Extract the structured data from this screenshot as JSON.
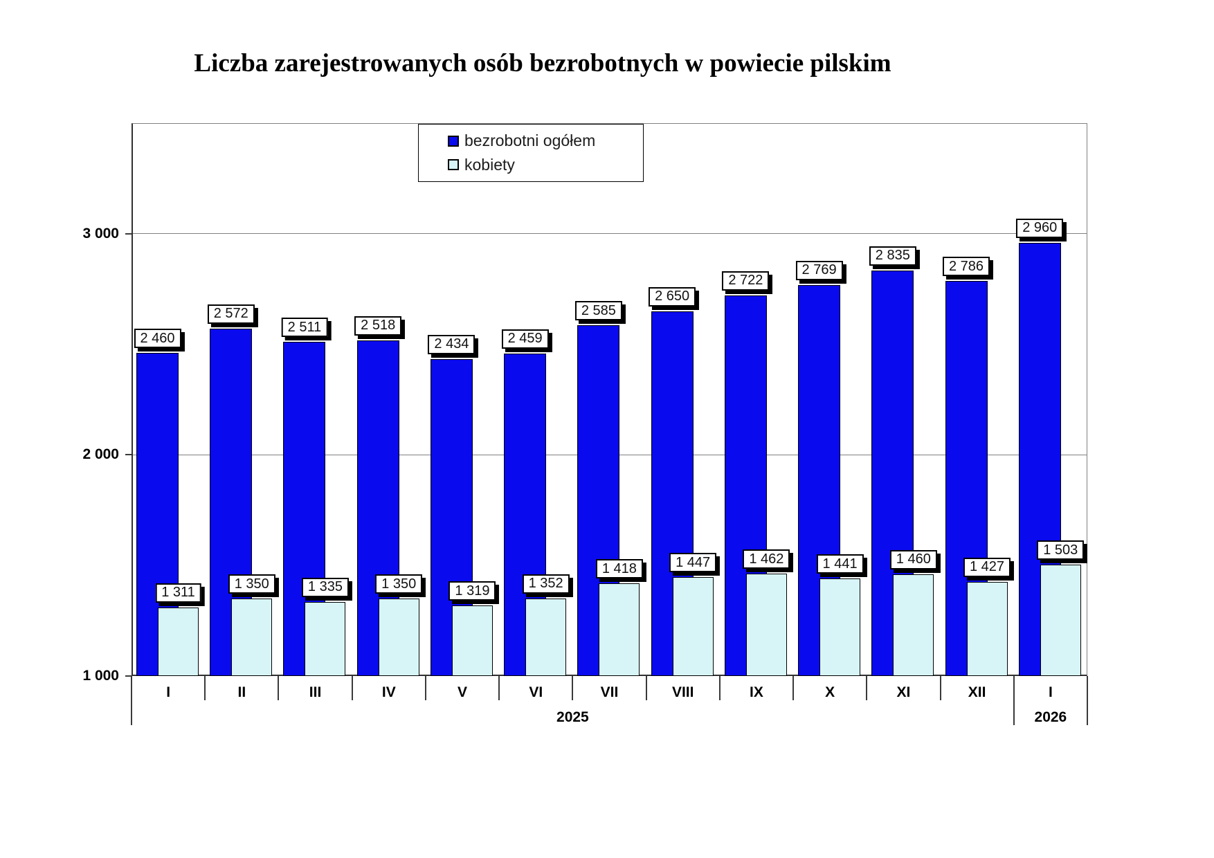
{
  "title": "Liczba zarejestrowanych osób bezrobotnych w powiecie pilskim",
  "colors": {
    "total_series": "#0a0aef",
    "women_series": "#d7f5f7",
    "gridline": "#808080",
    "label_box_bg": "#ffffff",
    "label_box_border": "#000000"
  },
  "legend": {
    "items": [
      {
        "label": "bezrobotni ogółem",
        "color": "#0a0aef"
      },
      {
        "label": "kobiety",
        "color": "#d7f5f7"
      }
    ]
  },
  "y_axis": {
    "tick_labels": [
      "1 000",
      "2 000",
      "3 000"
    ],
    "tick_values": [
      1000,
      2000,
      3000
    ],
    "min": 1000,
    "max": 3500
  },
  "x_axis": {
    "month_labels": [
      "I",
      "II",
      "III",
      "IV",
      "V",
      "VI",
      "VII",
      "VIII",
      "IX",
      "X",
      "XI",
      "XII",
      "I"
    ],
    "year_groups": [
      {
        "label": "2025",
        "months": 12
      },
      {
        "label": "2026",
        "months": 1
      }
    ]
  },
  "chart_data": {
    "type": "bar",
    "title": "Liczba zarejestrowanych osób bezrobotnych w powiecie pilskim",
    "categories": [
      "I",
      "II",
      "III",
      "IV",
      "V",
      "VI",
      "VII",
      "VIII",
      "IX",
      "X",
      "XI",
      "XII",
      "I"
    ],
    "category_year_groups": [
      {
        "label": "2025",
        "months": 12
      },
      {
        "label": "2026",
        "months": 1
      }
    ],
    "series": [
      {
        "name": "bezrobotni ogółem",
        "color": "#0a0aef",
        "values": [
          2460,
          2572,
          2511,
          2518,
          2434,
          2459,
          2585,
          2650,
          2722,
          2769,
          2835,
          2786,
          2960
        ],
        "labels": [
          "2 460",
          "2 572",
          "2 511",
          "2 518",
          "2 434",
          "2 459",
          "2 585",
          "2 650",
          "2 722",
          "2 769",
          "2 835",
          "2 786",
          "2 960"
        ]
      },
      {
        "name": "kobiety",
        "color": "#d7f5f7",
        "values": [
          1311,
          1350,
          1335,
          1350,
          1319,
          1352,
          1418,
          1447,
          1462,
          1441,
          1460,
          1427,
          1503
        ],
        "labels": [
          "1 311",
          "1 350",
          "1 335",
          "1 350",
          "1 319",
          "1 352",
          "1 418",
          "1 447",
          "1 462",
          "1 441",
          "1 460",
          "1 427",
          "1 503"
        ]
      }
    ],
    "ylim": [
      1000,
      3500
    ],
    "y_major_unit": 1000,
    "grid": true,
    "legend_position": "top-center",
    "bar_style": "overlapped",
    "data_labels": true
  }
}
